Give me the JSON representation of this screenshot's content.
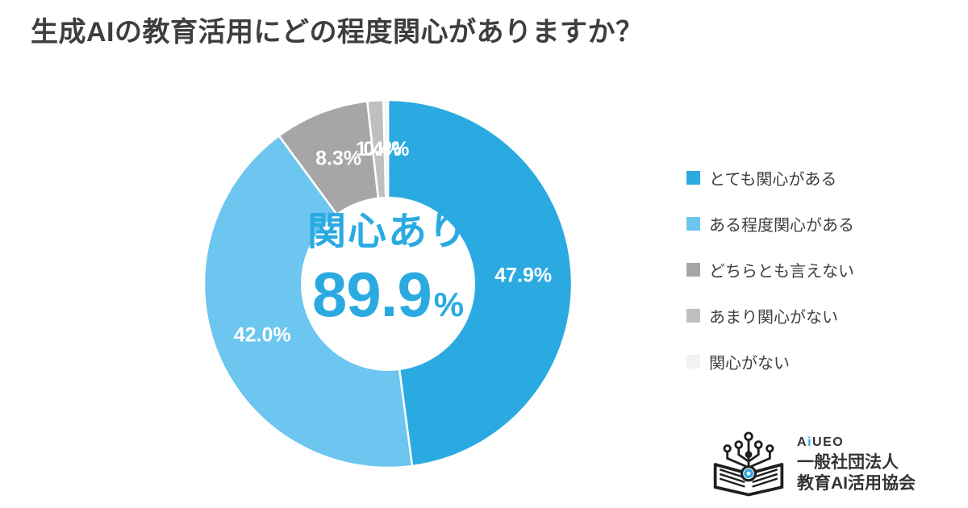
{
  "page": {
    "background": "#FFFFFF"
  },
  "title": "生成AIの教育活用にどの程度関心がありますか？",
  "chart_data": {
    "type": "pie",
    "variant": "donut",
    "title": "生成AIの教育活用にどの程度関心がありますか？",
    "direction": "clockwise",
    "start_angle_deg": 0,
    "legend_position": "right",
    "donut_hole_ratio": 0.47,
    "slice_label_color": "#FFFFFF",
    "series": [
      {
        "label": "とても関心がある",
        "value": 47.9,
        "display": "47.9%",
        "color": "#2BAAE2"
      },
      {
        "label": "ある程度関心がある",
        "value": 42.0,
        "display": "42.0%",
        "color": "#6CC6EF"
      },
      {
        "label": "どちらとも言えない",
        "value": 8.3,
        "display": "8.3%",
        "color": "#A6A6A6"
      },
      {
        "label": "あまり関心がない",
        "value": 1.4,
        "display": "1.4%",
        "color": "#BFBFBF"
      },
      {
        "label": "関心がない",
        "value": 0.4,
        "display": "0.4%",
        "color": "#F2F2F2"
      }
    ],
    "center": {
      "label": "関心あり",
      "value": "89.9",
      "unit": "%"
    }
  },
  "logo": {
    "brand_a": "A",
    "brand_i": "i",
    "brand_rest": "UEO",
    "org_type": "一般社団法人",
    "org_name": "教育AI活用協会",
    "accent": "#29A9E1",
    "ink": "#333333"
  },
  "colors": {
    "accent_blue": "#2BAAE2",
    "title_text": "#3E3E3E",
    "legend_text": "#3F3F3F"
  }
}
